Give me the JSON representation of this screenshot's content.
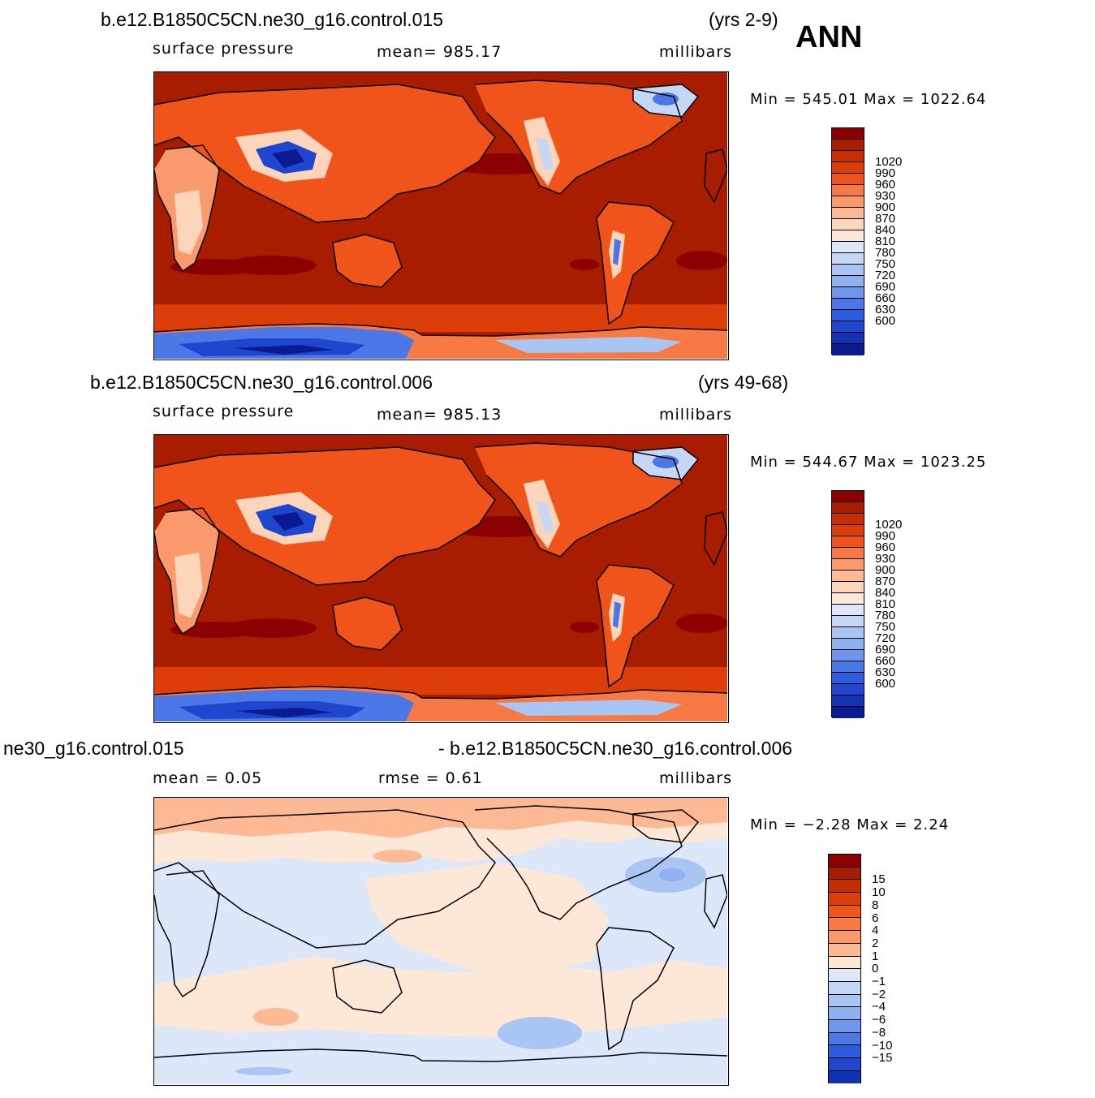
{
  "season": "ANN",
  "panels": [
    {
      "case": "b.e12.B1850C5CN.ne30_g16.control.015",
      "years": "(yrs 2-9)",
      "variable": "surface pressure",
      "stat": "mean=  985.17",
      "units": "millibars",
      "minmax": "Min  =  545.01  Max  =  1022.64"
    },
    {
      "case": "b.e12.B1850C5CN.ne30_g16.control.006",
      "years": "(yrs 49-68)",
      "variable": "surface pressure",
      "stat": "mean=  985.13",
      "units": "millibars",
      "minmax": "Min  =  544.67  Max  =  1023.25"
    },
    {
      "case_left": "ne30_g16.control.015",
      "case_right": "- b.e12.B1850C5CN.ne30_g16.control.006",
      "mean": "mean  =     0.05",
      "rmse": "rmse  =     0.61",
      "units": "millibars",
      "minmax": "Min  =    −2.28  Max  =      2.24"
    }
  ],
  "colorbar_abs": {
    "colors": [
      "#8b0000",
      "#a81c00",
      "#c42e00",
      "#dd3d08",
      "#f0541a",
      "#f77a45",
      "#fa9a6c",
      "#fcb994",
      "#fdd5bb",
      "#fde8d8",
      "#dce8f9",
      "#c4d8f6",
      "#a9c5f3",
      "#8fb1ef",
      "#6e97ec",
      "#4b78e6",
      "#2d5ddf",
      "#1e46cf",
      "#1232b4",
      "#0a1a90"
    ],
    "labels": [
      "1020",
      "990",
      "960",
      "930",
      "900",
      "870",
      "840",
      "810",
      "780",
      "750",
      "720",
      "690",
      "660",
      "630",
      "600"
    ]
  },
  "colorbar_diff": {
    "colors": [
      "#8b0000",
      "#a81c00",
      "#c42e00",
      "#dd3d08",
      "#f0541a",
      "#f77a45",
      "#fa9a6c",
      "#fcb994",
      "#fde8d8",
      "#dce8f9",
      "#c4d8f6",
      "#a9c5f3",
      "#8fb1ef",
      "#6e97ec",
      "#4b78e6",
      "#2d5ddf",
      "#1e46cf",
      "#1232b4"
    ],
    "labels": [
      "15",
      "10",
      "8",
      "6",
      "4",
      "2",
      "1",
      "0",
      "−1",
      "−2",
      "−4",
      "−6",
      "−8",
      "−10",
      "−15"
    ]
  }
}
